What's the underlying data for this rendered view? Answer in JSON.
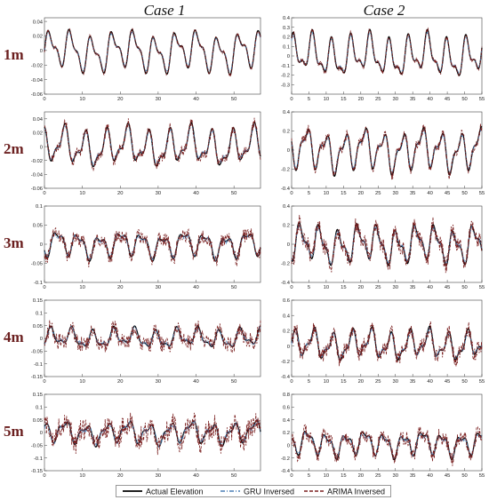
{
  "column_titles": [
    "Case 1",
    "Case 2"
  ],
  "row_labels": [
    "1m",
    "2m",
    "3m",
    "4m",
    "5m"
  ],
  "legend": {
    "actual": "Actual Elevation",
    "gru": "GRU Inversed",
    "arima": "ARIMA Inversed"
  },
  "colors": {
    "actual": "#000000",
    "gru": "#4a7fb5",
    "arima": "#7a1f1f"
  },
  "chart_data": [
    {
      "type": "line",
      "panel": "1m-case1",
      "xlim": [
        0,
        57
      ],
      "ylim": [
        -0.06,
        0.045
      ],
      "yticks": [
        0.04,
        0.02,
        0,
        -0.02,
        -0.04,
        -0.06
      ],
      "xticks": [
        0,
        10,
        20,
        30,
        40,
        50
      ],
      "amp": 0.028,
      "noise": 0.002
    },
    {
      "type": "line",
      "panel": "1m-case2",
      "xlim": [
        0,
        55
      ],
      "ylim": [
        -0.4,
        0.4
      ],
      "yticks": [
        0.4,
        0.3,
        0.2,
        0.1,
        0,
        -0.1,
        -0.2,
        -0.3
      ],
      "xticks": [
        0,
        5,
        10,
        15,
        20,
        25,
        30,
        35,
        40,
        45,
        50,
        55
      ],
      "amp": 0.22,
      "noise": 0.02
    },
    {
      "type": "line",
      "panel": "2m-case1",
      "xlim": [
        0,
        57
      ],
      "ylim": [
        -0.06,
        0.05
      ],
      "yticks": [
        0.04,
        0.02,
        0,
        -0.02,
        -0.04,
        -0.06
      ],
      "xticks": [
        0,
        10,
        20,
        30,
        40,
        50
      ],
      "amp": 0.028,
      "noise": 0.006
    },
    {
      "type": "line",
      "panel": "2m-case2",
      "xlim": [
        0,
        55
      ],
      "ylim": [
        -0.4,
        0.4
      ],
      "yticks": [
        0.4,
        0.2,
        0,
        -0.2,
        -0.4
      ],
      "xticks": [
        0,
        5,
        10,
        15,
        20,
        25,
        30,
        35,
        40,
        45,
        50,
        55
      ],
      "amp": 0.22,
      "noise": 0.04
    },
    {
      "type": "line",
      "panel": "3m-case1",
      "xlim": [
        0,
        57
      ],
      "ylim": [
        -0.1,
        0.1
      ],
      "yticks": [
        0.1,
        0.05,
        0,
        -0.05,
        -0.1
      ],
      "xticks": [
        0,
        10,
        20,
        30,
        40,
        50
      ],
      "amp": 0.035,
      "noise": 0.015
    },
    {
      "type": "line",
      "panel": "3m-case2",
      "xlim": [
        0,
        55
      ],
      "ylim": [
        -0.4,
        0.4
      ],
      "yticks": [
        0.4,
        0.2,
        0,
        -0.2,
        -0.4
      ],
      "xticks": [
        0,
        5,
        10,
        15,
        20,
        25,
        30,
        35,
        40,
        45,
        50,
        55
      ],
      "amp": 0.2,
      "noise": 0.07
    },
    {
      "type": "line",
      "panel": "4m-case1",
      "xlim": [
        0,
        57
      ],
      "ylim": [
        -0.15,
        0.15
      ],
      "yticks": [
        0.15,
        0.1,
        0.05,
        0,
        -0.05,
        -0.1,
        -0.15
      ],
      "xticks": [
        0,
        10,
        20,
        30,
        40,
        50
      ],
      "amp": 0.04,
      "noise": 0.025
    },
    {
      "type": "line",
      "panel": "4m-case2",
      "xlim": [
        0,
        55
      ],
      "ylim": [
        -0.4,
        0.6
      ],
      "yticks": [
        0.6,
        0.4,
        0.2,
        0,
        -0.2,
        -0.4
      ],
      "xticks": [
        0,
        5,
        10,
        15,
        20,
        25,
        30,
        35,
        40,
        45,
        50,
        55
      ],
      "amp": 0.2,
      "noise": 0.08
    },
    {
      "type": "line",
      "panel": "5m-case1",
      "xlim": [
        0,
        57
      ],
      "ylim": [
        -0.15,
        0.15
      ],
      "yticks": [
        0.15,
        0.1,
        0.05,
        0,
        -0.05,
        -0.1,
        -0.15
      ],
      "xticks": [
        0,
        10,
        20,
        30,
        40,
        50
      ],
      "amp": 0.045,
      "noise": 0.035
    },
    {
      "type": "line",
      "panel": "5m-case2",
      "xlim": [
        0,
        55
      ],
      "ylim": [
        -0.4,
        0.8
      ],
      "yticks": [
        0.8,
        0.6,
        0.4,
        0.2,
        0,
        -0.2,
        -0.4
      ],
      "xticks": [
        0,
        5,
        10,
        15,
        20,
        25,
        30,
        35,
        40,
        45,
        50,
        55
      ],
      "amp": 0.2,
      "noise": 0.09
    }
  ]
}
